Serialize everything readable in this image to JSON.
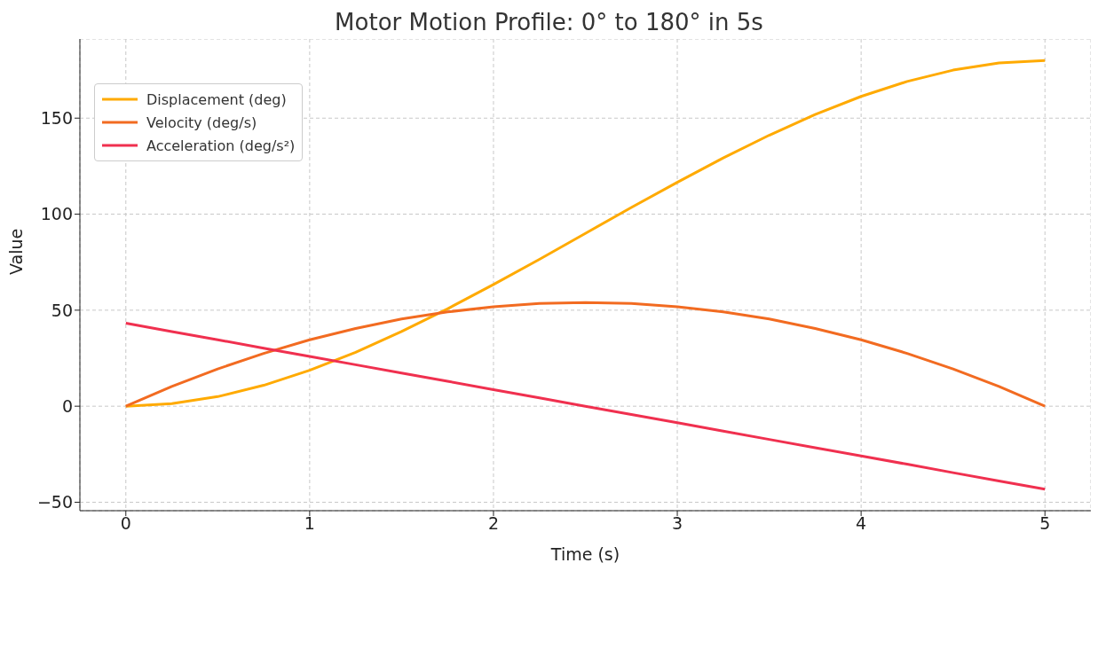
{
  "chart_data": {
    "type": "line",
    "title": "Motor Motion Profile: 0° to 180° in 5s",
    "xlabel": "Time (s)",
    "ylabel": "Value",
    "x": [
      0,
      0.25,
      0.5,
      0.75,
      1,
      1.25,
      1.5,
      1.75,
      2,
      2.25,
      2.5,
      2.75,
      3,
      3.25,
      3.5,
      3.75,
      4,
      4.25,
      4.5,
      4.75,
      5
    ],
    "series": [
      {
        "name": "Displacement (deg)",
        "color": "#ffaa00",
        "values": [
          0,
          1.3,
          5.0,
          10.9,
          18.7,
          28.1,
          38.9,
          50.7,
          63.4,
          76.5,
          90,
          103.5,
          116.6,
          129.3,
          141.1,
          151.9,
          161.3,
          169.1,
          175.0,
          178.7,
          180
        ]
      },
      {
        "name": "Velocity (deg/s)",
        "color": "#f26b21",
        "values": [
          0,
          10.3,
          19.4,
          27.5,
          34.6,
          40.5,
          45.4,
          49.1,
          51.8,
          53.5,
          54,
          53.5,
          51.8,
          49.1,
          45.4,
          40.5,
          34.6,
          27.5,
          19.4,
          10.3,
          0
        ]
      },
      {
        "name": "Acceleration (deg/s²)",
        "color": "#f0304f",
        "values": [
          43.2,
          38.9,
          34.6,
          30.2,
          25.9,
          21.6,
          17.3,
          13.0,
          8.6,
          4.3,
          0,
          -4.3,
          -8.6,
          -13.0,
          -17.3,
          -21.6,
          -25.9,
          -30.2,
          -34.6,
          -38.9,
          -43.2
        ]
      }
    ],
    "xlim": [
      -0.25,
      5.25
    ],
    "xticks": [
      0,
      1,
      2,
      3,
      4,
      5
    ],
    "ylim": [
      -54.4,
      191.2
    ],
    "yticks": [
      -50,
      0,
      50,
      100,
      150
    ],
    "grid": true,
    "legend": "top left",
    "line_style": "solid",
    "marker": "none"
  }
}
